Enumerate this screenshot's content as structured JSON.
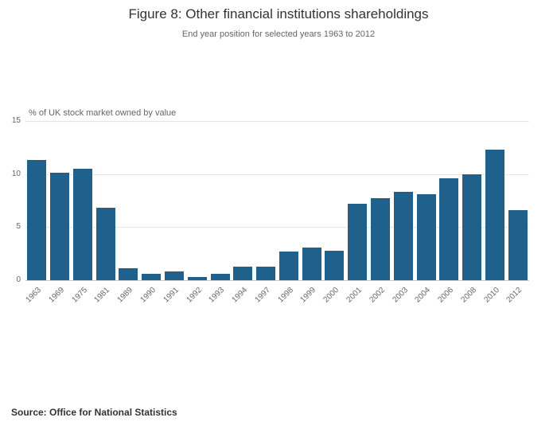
{
  "header": {
    "title": "Figure 8: Other financial institutions shareholdings",
    "subtitle": "End year position for selected years 1963 to 2012"
  },
  "chart_data": {
    "type": "bar",
    "title": "Figure 8: Other financial institutions shareholdings",
    "subtitle": "End year position for selected years 1963 to 2012",
    "xlabel": "",
    "ylabel": "% of UK stock market owned by value",
    "categories": [
      "1963",
      "1969",
      "1975",
      "1981",
      "1989",
      "1990",
      "1991",
      "1992",
      "1993",
      "1994",
      "1997",
      "1998",
      "1999",
      "2000",
      "2001",
      "2002",
      "2003",
      "2004",
      "2006",
      "2008",
      "2010",
      "2012"
    ],
    "values": [
      11.3,
      10.1,
      10.5,
      6.8,
      1.1,
      0.6,
      0.8,
      0.3,
      0.6,
      1.3,
      1.3,
      2.7,
      3.1,
      2.8,
      7.2,
      7.7,
      8.3,
      8.1,
      9.6,
      10.0,
      12.3,
      6.6
    ],
    "yticks": [
      0,
      5,
      10,
      15
    ],
    "ylim": [
      0,
      15
    ],
    "bar_color": "#20618C",
    "grid": true,
    "legend": "none"
  },
  "footer": {
    "source": "Source: Office for National Statistics"
  }
}
